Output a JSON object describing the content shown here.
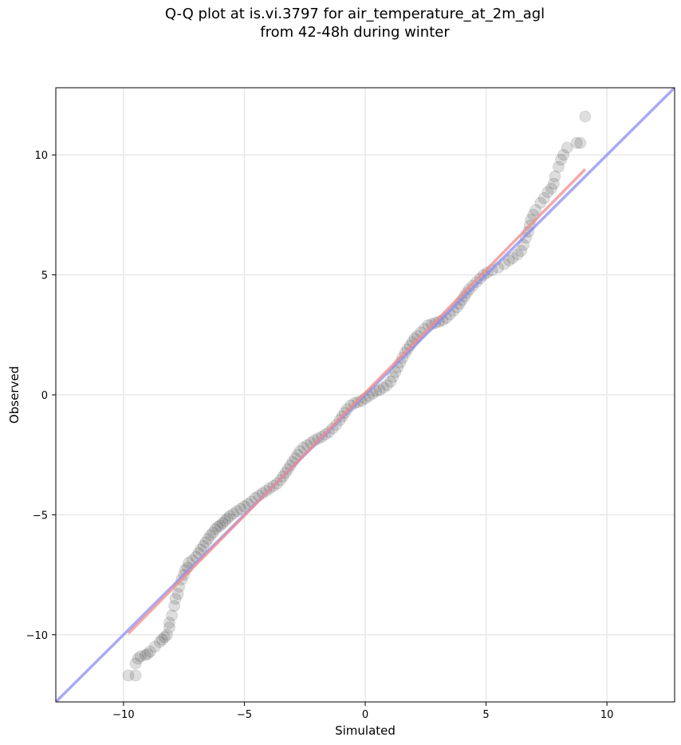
{
  "chart_data": {
    "type": "scatter",
    "title_line1": "Q-Q plot at is.vi.3797 for air_temperature_at_2m_agl",
    "title_line2": "from 42-48h during winter",
    "xlabel": "Simulated",
    "ylabel": "Observed",
    "xlim": [
      -12.8,
      12.8
    ],
    "ylim": [
      -12.8,
      12.8
    ],
    "xticks": [
      -10,
      -5,
      0,
      5,
      10
    ],
    "yticks": [
      -10,
      -5,
      0,
      5,
      10
    ],
    "xtick_labels": [
      "−10",
      "−5",
      "0",
      "5",
      "10"
    ],
    "ytick_labels": [
      "−10",
      "−5",
      "0",
      "5",
      "10"
    ],
    "grid": true,
    "colors": {
      "points": "#333333",
      "identity_line": "#8c8cf0",
      "fit_line": "#f08c8c",
      "grid": "#e8e8e8"
    },
    "identity_line": {
      "x": [
        -12.8,
        12.8
      ],
      "y": [
        -12.8,
        12.8
      ]
    },
    "fit_line": {
      "x": [
        -9.8,
        9.1
      ],
      "y": [
        -9.95,
        9.4
      ]
    },
    "points": [
      [
        -9.8,
        -11.7
      ],
      [
        -9.5,
        -11.7
      ],
      [
        -9.5,
        -11.2
      ],
      [
        -9.4,
        -11.0
      ],
      [
        -9.3,
        -10.9
      ],
      [
        -9.1,
        -10.85
      ],
      [
        -9.0,
        -10.8
      ],
      [
        -8.9,
        -10.7
      ],
      [
        -8.7,
        -10.5
      ],
      [
        -8.5,
        -10.3
      ],
      [
        -8.4,
        -10.2
      ],
      [
        -8.3,
        -10.1
      ],
      [
        -8.2,
        -10.0
      ],
      [
        -8.1,
        -9.7
      ],
      [
        -8.1,
        -9.5
      ],
      [
        -8.0,
        -9.2
      ],
      [
        -7.9,
        -8.8
      ],
      [
        -7.85,
        -8.5
      ],
      [
        -7.75,
        -8.3
      ],
      [
        -7.7,
        -8.0
      ],
      [
        -7.6,
        -7.7
      ],
      [
        -7.5,
        -7.5
      ],
      [
        -7.45,
        -7.3
      ],
      [
        -7.35,
        -7.2
      ],
      [
        -7.3,
        -7.0
      ],
      [
        -7.15,
        -6.9
      ],
      [
        -7.0,
        -6.75
      ],
      [
        -6.9,
        -6.6
      ],
      [
        -6.8,
        -6.45
      ],
      [
        -6.7,
        -6.3
      ],
      [
        -6.6,
        -6.15
      ],
      [
        -6.5,
        -6.0
      ],
      [
        -6.4,
        -5.85
      ],
      [
        -6.3,
        -5.75
      ],
      [
        -6.2,
        -5.6
      ],
      [
        -6.1,
        -5.5
      ],
      [
        -6.0,
        -5.45
      ],
      [
        -5.9,
        -5.35
      ],
      [
        -5.8,
        -5.25
      ],
      [
        -5.7,
        -5.15
      ],
      [
        -5.6,
        -5.05
      ],
      [
        -5.45,
        -4.95
      ],
      [
        -5.3,
        -4.85
      ],
      [
        -5.15,
        -4.75
      ],
      [
        -5.0,
        -4.65
      ],
      [
        -4.85,
        -4.55
      ],
      [
        -4.7,
        -4.45
      ],
      [
        -4.55,
        -4.3
      ],
      [
        -4.4,
        -4.2
      ],
      [
        -4.25,
        -4.1
      ],
      [
        -4.1,
        -4.0
      ],
      [
        -3.95,
        -3.9
      ],
      [
        -3.8,
        -3.8
      ],
      [
        -3.65,
        -3.7
      ],
      [
        -3.5,
        -3.55
      ],
      [
        -3.4,
        -3.4
      ],
      [
        -3.3,
        -3.25
      ],
      [
        -3.2,
        -3.1
      ],
      [
        -3.1,
        -2.95
      ],
      [
        -3.0,
        -2.8
      ],
      [
        -2.9,
        -2.65
      ],
      [
        -2.8,
        -2.5
      ],
      [
        -2.7,
        -2.35
      ],
      [
        -2.55,
        -2.2
      ],
      [
        -2.4,
        -2.1
      ],
      [
        -2.25,
        -2.0
      ],
      [
        -2.1,
        -1.9
      ],
      [
        -1.95,
        -1.82
      ],
      [
        -1.8,
        -1.75
      ],
      [
        -1.65,
        -1.65
      ],
      [
        -1.5,
        -1.55
      ],
      [
        -1.35,
        -1.4
      ],
      [
        -1.2,
        -1.25
      ],
      [
        -1.05,
        -1.05
      ],
      [
        -0.95,
        -0.9
      ],
      [
        -0.85,
        -0.75
      ],
      [
        -0.75,
        -0.6
      ],
      [
        -0.6,
        -0.45
      ],
      [
        -0.45,
        -0.35
      ],
      [
        -0.3,
        -0.3
      ],
      [
        -0.15,
        -0.25
      ],
      [
        0.0,
        -0.15
      ],
      [
        0.15,
        -0.05
      ],
      [
        0.3,
        0.05
      ],
      [
        0.45,
        0.15
      ],
      [
        0.6,
        0.2
      ],
      [
        0.75,
        0.3
      ],
      [
        0.9,
        0.4
      ],
      [
        1.05,
        0.55
      ],
      [
        1.15,
        0.75
      ],
      [
        1.25,
        0.95
      ],
      [
        1.35,
        1.15
      ],
      [
        1.45,
        1.35
      ],
      [
        1.55,
        1.55
      ],
      [
        1.65,
        1.75
      ],
      [
        1.75,
        1.9
      ],
      [
        1.85,
        2.05
      ],
      [
        1.95,
        2.2
      ],
      [
        2.05,
        2.35
      ],
      [
        2.15,
        2.45
      ],
      [
        2.3,
        2.6
      ],
      [
        2.45,
        2.75
      ],
      [
        2.6,
        2.9
      ],
      [
        2.75,
        2.95
      ],
      [
        2.9,
        3.0
      ],
      [
        3.05,
        3.05
      ],
      [
        3.2,
        3.1
      ],
      [
        3.35,
        3.2
      ],
      [
        3.5,
        3.35
      ],
      [
        3.65,
        3.5
      ],
      [
        3.8,
        3.65
      ],
      [
        3.9,
        3.8
      ],
      [
        4.0,
        3.95
      ],
      [
        4.1,
        4.1
      ],
      [
        4.2,
        4.25
      ],
      [
        4.3,
        4.4
      ],
      [
        4.45,
        4.55
      ],
      [
        4.6,
        4.7
      ],
      [
        4.75,
        4.85
      ],
      [
        4.9,
        5.0
      ],
      [
        5.05,
        5.1
      ],
      [
        5.25,
        5.2
      ],
      [
        5.5,
        5.3
      ],
      [
        5.75,
        5.45
      ],
      [
        5.95,
        5.6
      ],
      [
        6.1,
        5.7
      ],
      [
        6.3,
        5.85
      ],
      [
        6.45,
        6.0
      ],
      [
        6.55,
        6.25
      ],
      [
        6.65,
        6.55
      ],
      [
        6.75,
        6.8
      ],
      [
        6.8,
        7.05
      ],
      [
        6.85,
        7.3
      ],
      [
        6.95,
        7.5
      ],
      [
        7.05,
        7.7
      ],
      [
        7.25,
        8.0
      ],
      [
        7.4,
        8.2
      ],
      [
        7.55,
        8.45
      ],
      [
        7.7,
        8.6
      ],
      [
        7.8,
        8.8
      ],
      [
        7.85,
        9.1
      ],
      [
        8.0,
        9.5
      ],
      [
        8.1,
        9.8
      ],
      [
        8.2,
        10.0
      ],
      [
        8.35,
        10.3
      ],
      [
        8.75,
        10.5
      ],
      [
        8.9,
        10.5
      ],
      [
        9.1,
        11.6
      ]
    ]
  }
}
